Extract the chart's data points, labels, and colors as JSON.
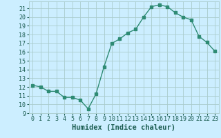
{
  "x": [
    0,
    1,
    2,
    3,
    4,
    5,
    6,
    7,
    8,
    9,
    10,
    11,
    12,
    13,
    14,
    15,
    16,
    17,
    18,
    19,
    20,
    21,
    22,
    23
  ],
  "y": [
    12.2,
    12.0,
    11.5,
    11.5,
    10.8,
    10.8,
    10.5,
    9.5,
    11.2,
    14.3,
    17.0,
    17.5,
    18.2,
    18.6,
    20.0,
    21.2,
    21.4,
    21.2,
    20.5,
    20.0,
    19.7,
    17.8,
    17.1,
    16.1
  ],
  "line_color": "#2e8b74",
  "bg_color": "#cceeff",
  "grid_color": "#aacccc",
  "xlabel": "Humidex (Indice chaleur)",
  "xlim": [
    -0.5,
    23.5
  ],
  "ylim": [
    9,
    21.8
  ],
  "yticks": [
    9,
    10,
    11,
    12,
    13,
    14,
    15,
    16,
    17,
    18,
    19,
    20,
    21
  ],
  "xticks": [
    0,
    1,
    2,
    3,
    4,
    5,
    6,
    7,
    8,
    9,
    10,
    11,
    12,
    13,
    14,
    15,
    16,
    17,
    18,
    19,
    20,
    21,
    22,
    23
  ],
  "marker_size": 2.5,
  "line_width": 1.0,
  "xlabel_fontsize": 7.5,
  "tick_fontsize": 6,
  "tick_color": "#1a5c50",
  "label_color": "#1a5c50"
}
